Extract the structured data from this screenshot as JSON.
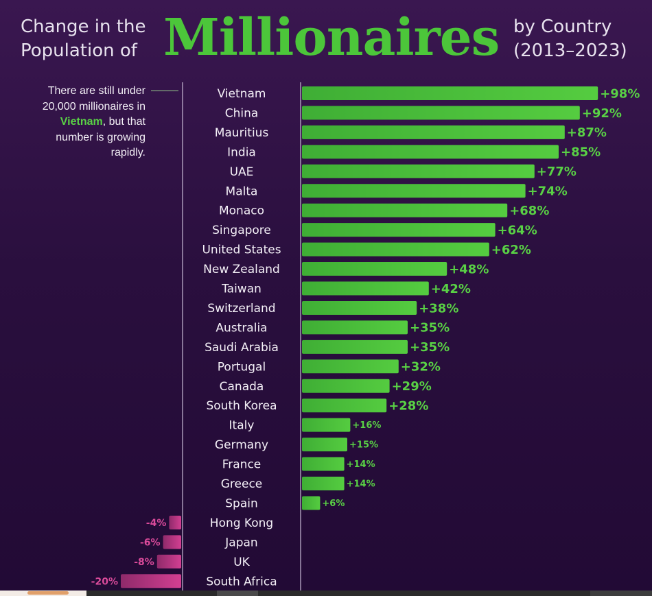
{
  "header": {
    "left_line1": "Change in the",
    "left_line2": "Population of",
    "big_word": "Millionaires",
    "right_line1": "by Country",
    "right_line2": "(2013–2023)"
  },
  "note": {
    "pre": "There are still under 20,000 millionaires in ",
    "highlight": "Vietnam",
    "post": ", but that number is growing rapidly."
  },
  "colors": {
    "positive": "#4cc63a",
    "negative": "#c23a8a",
    "positive_label": "#59d145",
    "negative_label": "#d94a9a"
  },
  "chart_data": {
    "type": "bar",
    "title": "Change in the Population of Millionaires by Country (2013–2023)",
    "orientation": "horizontal",
    "unit": "%",
    "categories": [
      "Vietnam",
      "China",
      "Mauritius",
      "India",
      "UAE",
      "Malta",
      "Monaco",
      "Singapore",
      "United States",
      "New Zealand",
      "Taiwan",
      "Switzerland",
      "Australia",
      "Saudi Arabia",
      "Portugal",
      "Canada",
      "South Korea",
      "Italy",
      "Germany",
      "France",
      "Greece",
      "Spain",
      "Hong Kong",
      "Japan",
      "UK",
      "South Africa"
    ],
    "values": [
      98,
      92,
      87,
      85,
      77,
      74,
      68,
      64,
      62,
      48,
      42,
      38,
      35,
      35,
      32,
      29,
      28,
      16,
      15,
      14,
      14,
      6,
      -4,
      -6,
      -8,
      -20
    ],
    "labels": [
      "+98%",
      "+92%",
      "+87%",
      "+85%",
      "+77%",
      "+74%",
      "+68%",
      "+64%",
      "+62%",
      "+48%",
      "+42%",
      "+38%",
      "+35%",
      "+35%",
      "+32%",
      "+29%",
      "+28%",
      "+16%",
      "+15%",
      "+14%",
      "+14%",
      "+6%",
      "-4%",
      "-6%",
      "-8%",
      "-20%"
    ]
  }
}
